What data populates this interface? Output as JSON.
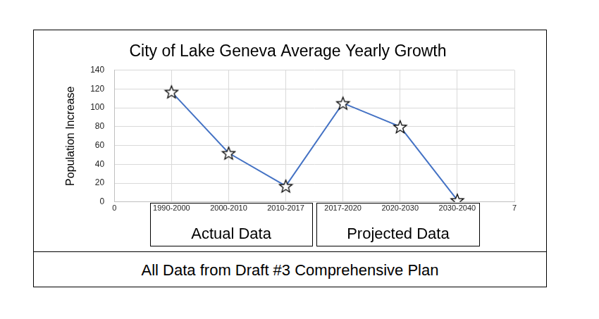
{
  "chart_data": {
    "type": "line",
    "title": "City of Lake Geneva Average Yearly Growth",
    "y_label": "Population Increase",
    "x": [
      1,
      2,
      3,
      4,
      5,
      6
    ],
    "values": [
      117,
      52,
      17,
      105,
      80,
      2
    ],
    "color": "#4472c4",
    "marker": "star",
    "xlim": [
      0,
      7
    ],
    "xticks": [
      0,
      {
        "value": 1,
        "label": "1990-2000"
      },
      {
        "value": 2,
        "label": "2000-2010"
      },
      {
        "value": 3,
        "label": "2010-2017"
      },
      {
        "value": 4,
        "label": "2017-2020"
      },
      {
        "value": 5,
        "label": "2020-2030"
      },
      {
        "value": 6,
        "label": "2030-2040"
      },
      7
    ],
    "ylim": [
      0,
      140
    ],
    "yticks": [
      0,
      20,
      40,
      60,
      80,
      100,
      120,
      140
    ],
    "grid": true,
    "group_labels": [
      "Actual Data",
      "Projected Data"
    ],
    "footer": "All Data from Draft #3 Comprehensive Plan"
  }
}
